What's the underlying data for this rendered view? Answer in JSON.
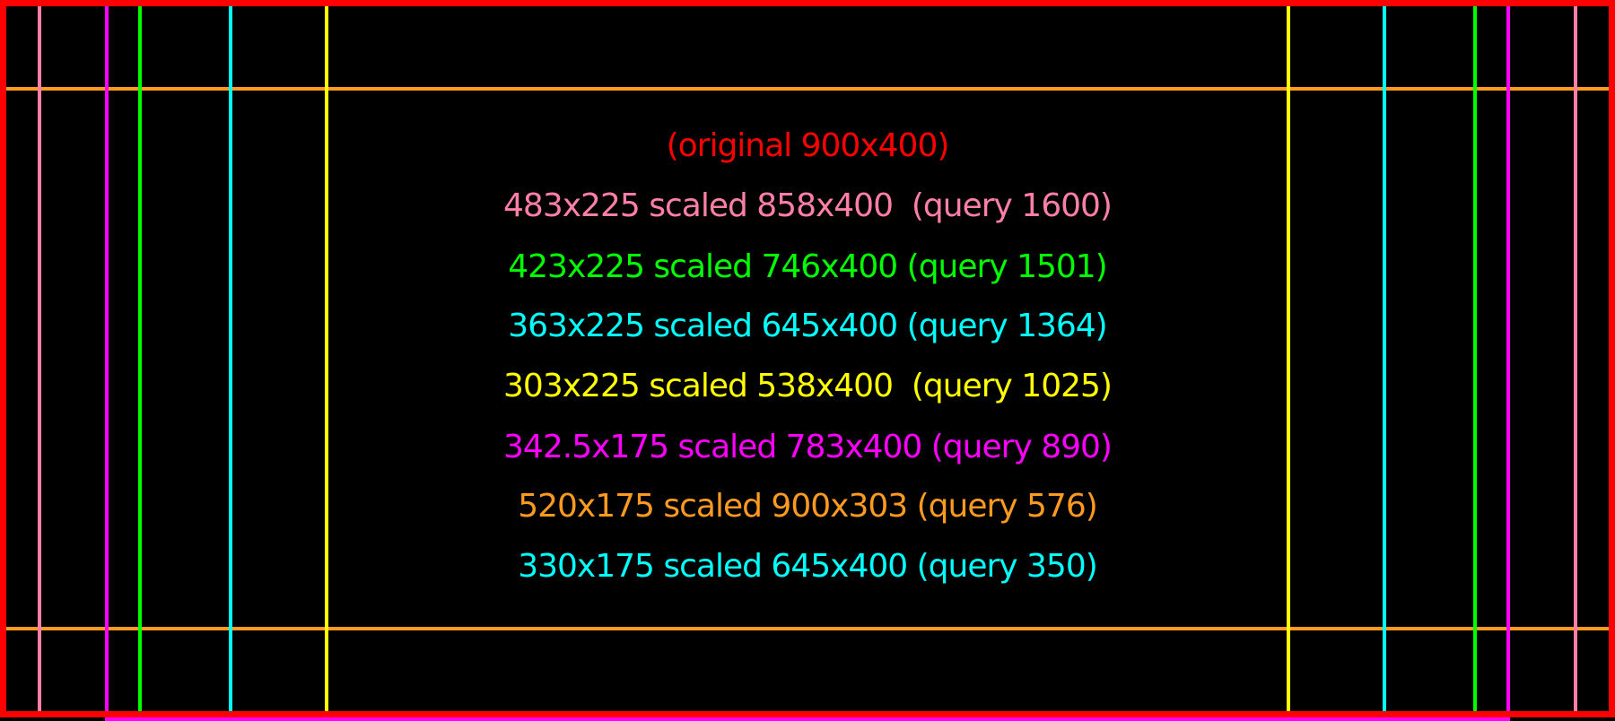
{
  "colors": {
    "red": "#ff0000",
    "pink": "#ff7fa8",
    "green": "#00ff00",
    "cyan": "#00ffff",
    "yellow": "#ffff00",
    "magenta": "#ff00ff",
    "orange": "#ff9a20"
  },
  "labels": [
    {
      "text": "(original 900x400)",
      "color": "red"
    },
    {
      "text": "483x225 scaled 858x400  (query 1600)",
      "color": "pink"
    },
    {
      "text": "423x225 scaled 746x400 (query 1501)",
      "color": "green"
    },
    {
      "text": "363x225 scaled 645x400 (query 1364)",
      "color": "cyan"
    },
    {
      "text": "303x225 scaled 538x400  (query 1025)",
      "color": "yellow"
    },
    {
      "text": "342.5x175 scaled 783x400 (query 890)",
      "color": "magenta"
    },
    {
      "text": "520x175 scaled 900x303 (query 576)",
      "color": "orange"
    },
    {
      "text": "330x175 scaled 645x400 (query 350)",
      "color": "cyan"
    }
  ]
}
